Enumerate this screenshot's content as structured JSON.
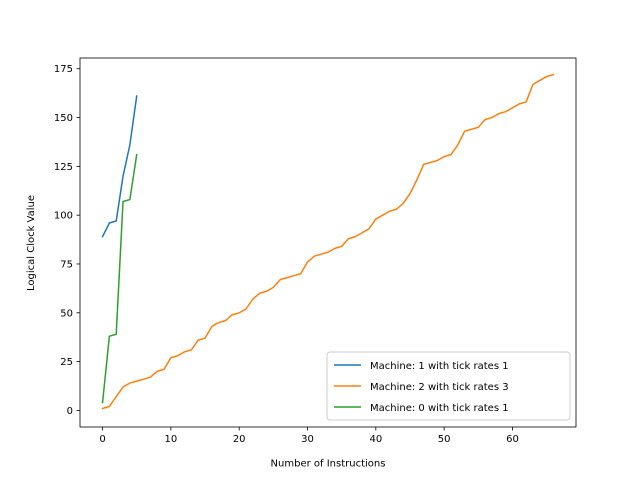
{
  "chart_data": {
    "type": "line",
    "xlabel": "Number of Instructions",
    "ylabel": "Logical Clock Value",
    "xlim": [
      -3.3,
      69.3
    ],
    "ylim": [
      -8.5,
      180.5
    ],
    "xticks": [
      0,
      10,
      20,
      30,
      40,
      50,
      60
    ],
    "yticks": [
      0,
      25,
      50,
      75,
      100,
      125,
      150,
      175
    ],
    "grid": false,
    "legend_position": "lower-right",
    "series": [
      {
        "name": "Machine: 1 with tick rates 1",
        "color": "#1f77b4",
        "x": [
          0,
          1,
          2,
          3,
          4,
          5
        ],
        "y": [
          89,
          96,
          97,
          120,
          136,
          161
        ]
      },
      {
        "name": "Machine: 2 with tick rates 3",
        "color": "#ff7f0e",
        "x": [
          0,
          1,
          2,
          3,
          4,
          5,
          6,
          7,
          8,
          9,
          10,
          11,
          12,
          13,
          14,
          15,
          16,
          17,
          18,
          19,
          20,
          21,
          22,
          23,
          24,
          25,
          26,
          27,
          28,
          29,
          30,
          31,
          32,
          33,
          34,
          35,
          36,
          37,
          38,
          39,
          40,
          41,
          42,
          43,
          44,
          45,
          46,
          47,
          48,
          49,
          50,
          51,
          52,
          53,
          54,
          55,
          56,
          57,
          58,
          59,
          60,
          61,
          62,
          63,
          64,
          65,
          66
        ],
        "y": [
          1,
          2,
          7,
          12,
          14,
          15,
          16,
          17,
          20,
          21,
          27,
          28,
          30,
          31,
          36,
          37,
          43,
          45,
          46,
          49,
          50,
          52,
          57,
          60,
          61,
          63,
          67,
          68,
          69,
          70,
          76,
          79,
          80,
          81,
          83,
          84,
          88,
          89,
          91,
          93,
          98,
          100,
          102,
          103,
          106,
          111,
          118,
          126,
          127,
          128,
          130,
          131,
          136,
          143,
          144,
          145,
          149,
          150,
          152,
          153,
          155,
          157,
          158,
          167,
          169,
          171,
          172
        ]
      },
      {
        "name": "Machine: 0 with tick rates 1",
        "color": "#2ca02c",
        "x": [
          0,
          1,
          2,
          3,
          4,
          5
        ],
        "y": [
          4,
          38,
          39,
          107,
          108,
          131
        ]
      }
    ]
  }
}
